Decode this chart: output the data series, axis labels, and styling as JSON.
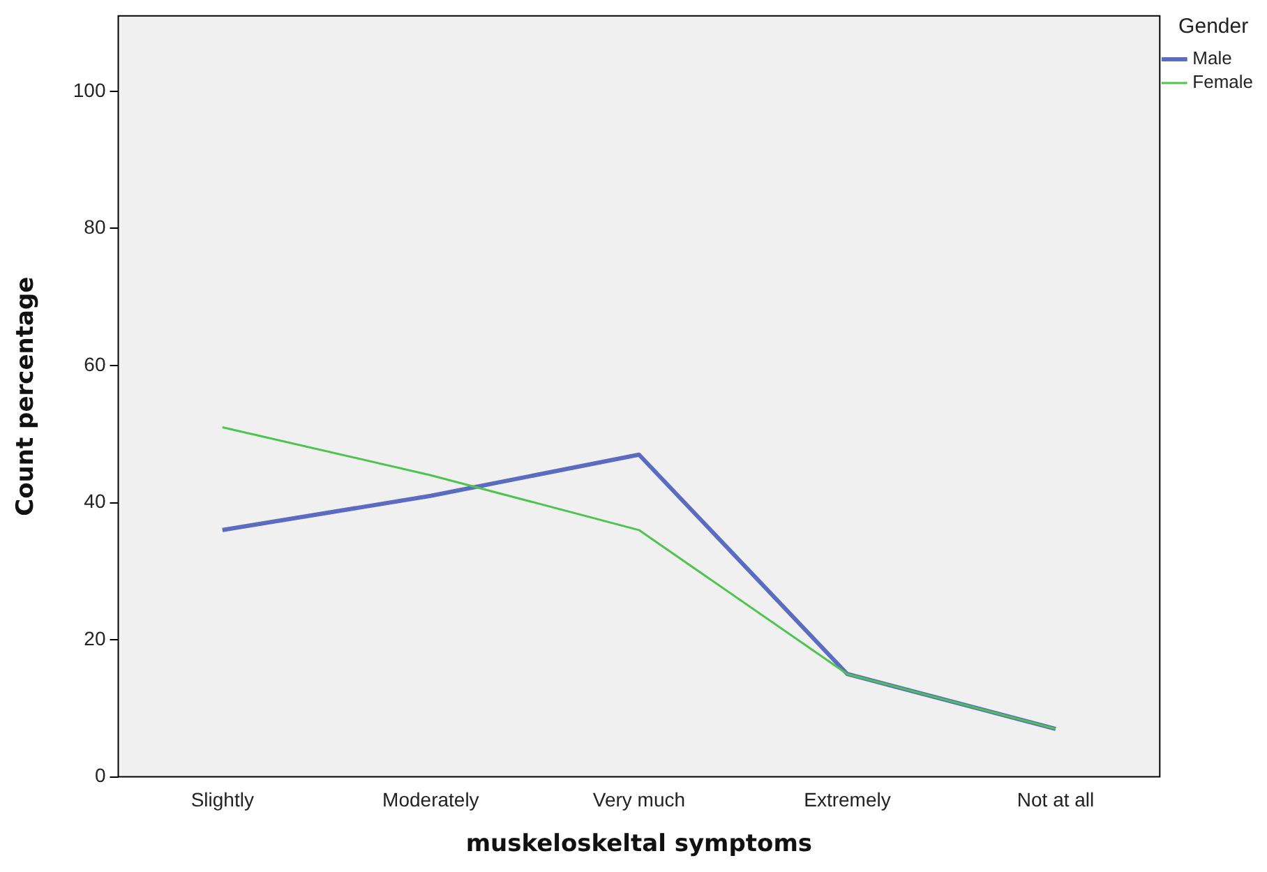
{
  "chart_data": {
    "type": "line",
    "xlabel": "muskeloskeltal symptoms",
    "ylabel": "Count percentage",
    "legend_title": "Gender",
    "categories": [
      "Slightly",
      "Moderately",
      "Very much",
      "Extremely",
      "Not at all"
    ],
    "series": [
      {
        "name": "Male",
        "color": "#5a6bc0",
        "values": [
          36,
          41,
          47,
          15,
          7
        ]
      },
      {
        "name": "Female",
        "color": "#4ec44e",
        "values": [
          51,
          44,
          36,
          15,
          7
        ]
      }
    ],
    "ylim": [
      0,
      111
    ],
    "yticks": [
      0,
      20,
      40,
      60,
      80,
      100
    ],
    "grid": false,
    "legend": "top right",
    "marker": "none"
  }
}
